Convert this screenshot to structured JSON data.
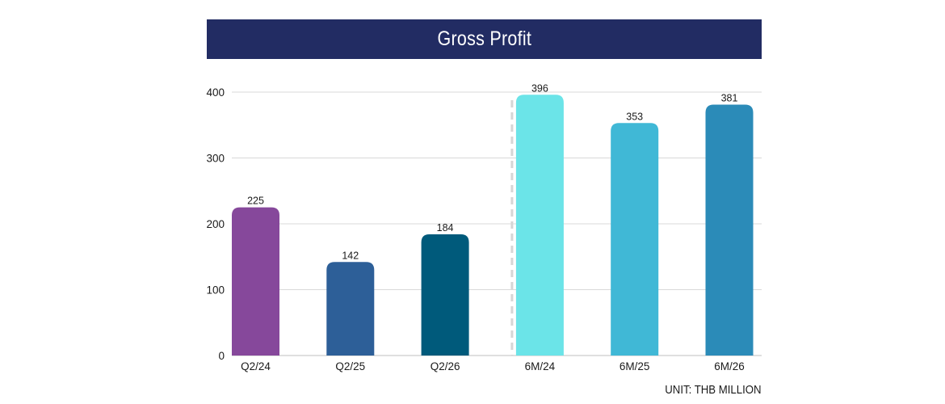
{
  "title": "Gross Profit",
  "unit_label": "UNIT: THB MILLION",
  "colors": {
    "title_bg": "#222c63",
    "gridline": "#d9d9d9",
    "axis": "#bfbfbf",
    "divider": "#d6d6d6",
    "text": "#1a1a1a"
  },
  "chart_data": {
    "type": "bar",
    "title": "Gross Profit",
    "xlabel": "",
    "ylabel": "",
    "ylim": [
      0,
      400
    ],
    "yticks": [
      0,
      100,
      200,
      300,
      400
    ],
    "grid": true,
    "legend": "none",
    "categories": [
      "Q2/24",
      "Q2/25",
      "Q2/26",
      "6M/24",
      "6M/25",
      "6M/26"
    ],
    "values": [
      225,
      142,
      184,
      396,
      353,
      381
    ],
    "data_labels": [
      "225",
      "142",
      "184",
      "396",
      "353",
      "381"
    ],
    "bar_colors": [
      "#86489b",
      "#2d5f98",
      "#005a7b",
      "#6be4e8",
      "#40b8d6",
      "#2b8bb8"
    ],
    "divider_after_index": 2
  }
}
